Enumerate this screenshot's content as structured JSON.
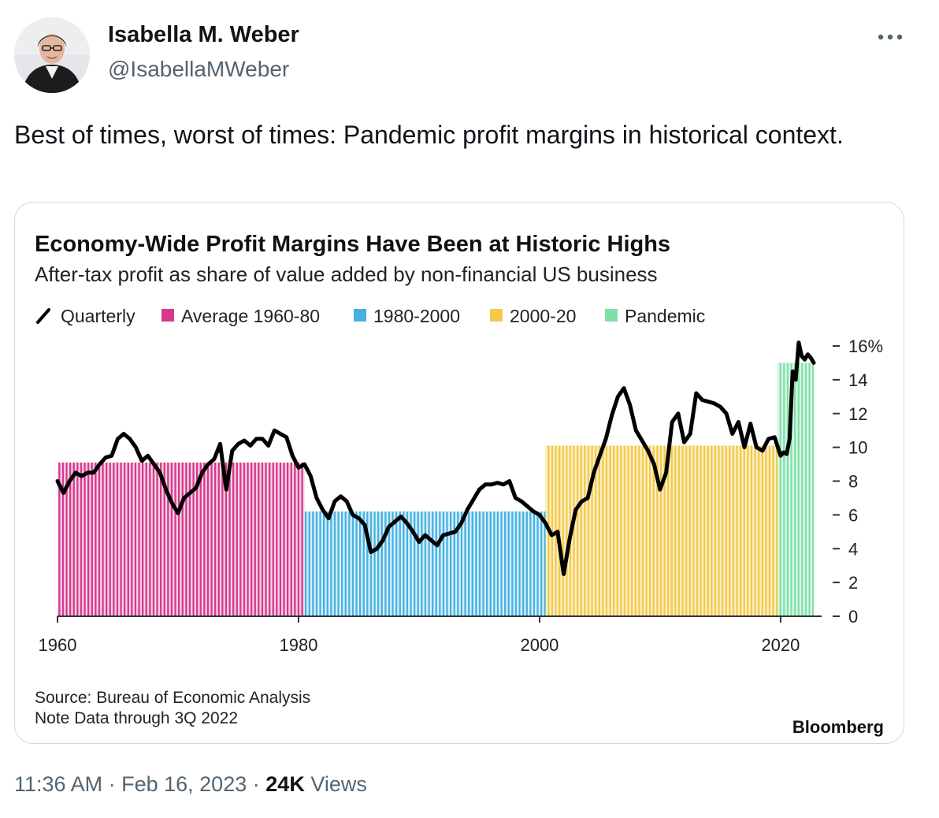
{
  "tweet": {
    "author_name": "Isabella M. Weber",
    "author_handle": "@IsabellaMWeber",
    "text": "Best of times, worst of times: Pandemic profit margins in historical context.",
    "time": "11:36 AM",
    "date": "Feb 16, 2023",
    "separator": "·",
    "views_count": "24K",
    "views_label": "Views",
    "more_icon": "more-horizontal-icon"
  },
  "colors": {
    "avg_1960_80": "#d6398c",
    "avg_1980_2000": "#46b1e1",
    "avg_2000_20": "#f3c94a",
    "pandemic": "#7fe0a6",
    "line": "#000000"
  },
  "chart_data": {
    "type": "line",
    "title": "Economy-Wide Profit Margins Have Been at Historic Highs",
    "subtitle": "After-tax profit as share of value added by non-financial US business",
    "legend": [
      "Quarterly",
      "Average 1960-80",
      "1980-2000",
      "2000-20",
      "Pandemic"
    ],
    "legend_placement": "top-left",
    "x_ticks": [
      "1960",
      "1980",
      "2000",
      "2020"
    ],
    "y_ticks": [
      "0",
      "2",
      "4",
      "6",
      "8",
      "10",
      "12",
      "14",
      "16%"
    ],
    "xlim": [
      1960,
      2022.75
    ],
    "ylim": [
      0,
      16
    ],
    "averages": [
      {
        "name": "Average 1960-80",
        "start": 1960,
        "end": 1980.5,
        "value": 9.1
      },
      {
        "name": "1980-2000",
        "start": 1980.5,
        "end": 2000.5,
        "value": 6.2
      },
      {
        "name": "2000-20",
        "start": 2000.5,
        "end": 2019.75,
        "value": 10.1
      },
      {
        "name": "Pandemic",
        "start": 2019.75,
        "end": 2022.75,
        "value": 15.0
      }
    ],
    "series": [
      {
        "name": "Quarterly",
        "x": [
          1960,
          1960.5,
          1961,
          1961.5,
          1962,
          1962.5,
          1963,
          1963.5,
          1964,
          1964.5,
          1965,
          1965.5,
          1966,
          1966.5,
          1967,
          1967.5,
          1968,
          1968.5,
          1969,
          1969.5,
          1970,
          1970.5,
          1971,
          1971.5,
          1972,
          1972.5,
          1973,
          1973.5,
          1974,
          1974.5,
          1975,
          1975.5,
          1976,
          1976.5,
          1977,
          1977.5,
          1978,
          1978.5,
          1979,
          1979.5,
          1980,
          1980.5,
          1981,
          1981.5,
          1982,
          1982.5,
          1983,
          1983.5,
          1984,
          1984.5,
          1985,
          1985.5,
          1986,
          1986.5,
          1987,
          1987.5,
          1988,
          1988.5,
          1989,
          1989.5,
          1990,
          1990.5,
          1991,
          1991.5,
          1992,
          1992.5,
          1993,
          1993.5,
          1994,
          1994.5,
          1995,
          1995.5,
          1996,
          1996.5,
          1997,
          1997.5,
          1998,
          1998.5,
          1999,
          1999.5,
          2000,
          2000.5,
          2001,
          2001.5,
          2002,
          2002.5,
          2003,
          2003.5,
          2004,
          2004.5,
          2005,
          2005.5,
          2006,
          2006.5,
          2007,
          2007.5,
          2008,
          2008.5,
          2009,
          2009.5,
          2010,
          2010.5,
          2011,
          2011.5,
          2012,
          2012.5,
          2013,
          2013.5,
          2014,
          2014.5,
          2015,
          2015.5,
          2016,
          2016.5,
          2017,
          2017.5,
          2018,
          2018.5,
          2019,
          2019.5,
          2020,
          2020.25,
          2020.5,
          2020.75,
          2021,
          2021.25,
          2021.5,
          2021.75,
          2022,
          2022.25,
          2022.5,
          2022.75
        ],
        "values": [
          8.0,
          7.3,
          8.0,
          8.5,
          8.3,
          8.5,
          8.5,
          9.0,
          9.4,
          9.5,
          10.5,
          10.8,
          10.5,
          10.0,
          9.2,
          9.5,
          9.0,
          8.5,
          7.5,
          6.7,
          6.1,
          7.0,
          7.3,
          7.6,
          8.5,
          9.0,
          9.3,
          10.2,
          7.5,
          9.8,
          10.2,
          10.4,
          10.1,
          10.5,
          10.5,
          10.1,
          11.0,
          10.8,
          10.6,
          9.5,
          8.8,
          9.0,
          8.3,
          7.0,
          6.3,
          5.8,
          6.8,
          7.1,
          6.8,
          6.0,
          5.8,
          5.4,
          3.8,
          4.0,
          4.5,
          5.3,
          5.6,
          5.9,
          5.5,
          5.0,
          4.4,
          4.8,
          4.5,
          4.2,
          4.8,
          4.9,
          5.0,
          5.5,
          6.3,
          6.9,
          7.5,
          7.8,
          7.8,
          7.9,
          7.8,
          8.0,
          7.0,
          6.8,
          6.5,
          6.2,
          6.0,
          5.5,
          4.8,
          5.0,
          2.5,
          4.6,
          6.3,
          6.8,
          7.0,
          8.5,
          9.5,
          10.5,
          11.9,
          13.0,
          13.5,
          12.5,
          11.0,
          10.4,
          9.8,
          9.0,
          7.5,
          8.5,
          11.5,
          12.0,
          10.3,
          10.8,
          13.2,
          12.8,
          12.7,
          12.6,
          12.4,
          12.0,
          10.8,
          11.5,
          10.0,
          11.4,
          10.0,
          9.8,
          10.5,
          10.6,
          9.5,
          9.7,
          9.6,
          10.5,
          14.5,
          14.0,
          16.2,
          15.4,
          15.2,
          15.5,
          15.3,
          15.0
        ]
      }
    ],
    "source": "Source: Bureau of Economic Analysis",
    "note": "Note Data through 3Q 2022",
    "brand": "Bloomberg"
  }
}
